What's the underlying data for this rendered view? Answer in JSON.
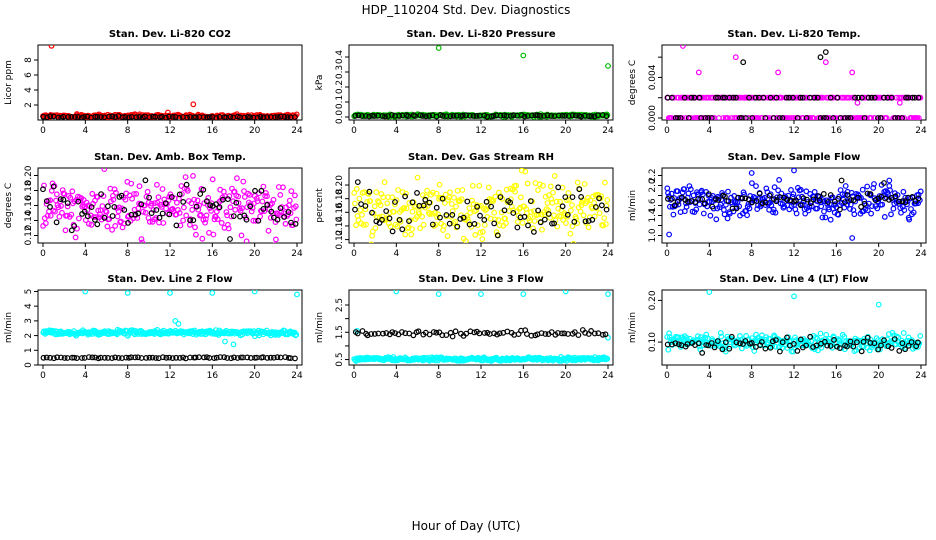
{
  "figure": {
    "title": "HDP_110204  Std. Dev. Diagnostics",
    "xlabel": "Hour of Day (UTC)"
  },
  "chart_data": [
    {
      "type": "scatter",
      "title": "Stan. Dev. Li-820 CO2",
      "ylabel": "Licor ppm",
      "xlim": [
        0,
        24
      ],
      "ylim": [
        0,
        10
      ],
      "xticks": [
        0,
        4,
        8,
        12,
        16,
        20,
        24
      ],
      "yticks": [
        2,
        4,
        6,
        8
      ],
      "ytick_labels": [
        "2",
        "4",
        "6",
        "8"
      ],
      "series": [
        {
          "name": "primary",
          "color": "#ff0000",
          "baseline": 0.5,
          "noise": 0.12,
          "outliers": [
            [
              0.8,
              9.9
            ],
            [
              11.8,
              1.0
            ],
            [
              14.2,
              2.1
            ],
            [
              3.2,
              0.8
            ],
            [
              20.5,
              0.7
            ]
          ]
        },
        {
          "name": "secondary",
          "color": "#000000",
          "baseline": 0.4,
          "noise": 0.05,
          "outliers": []
        }
      ]
    },
    {
      "type": "scatter",
      "title": "Stan. Dev. Li-820 Pressure",
      "ylabel": "kPa",
      "xlim": [
        0,
        24
      ],
      "ylim": [
        -0.02,
        0.48
      ],
      "xticks": [
        0,
        4,
        8,
        12,
        16,
        20,
        24
      ],
      "yticks": [
        0.0,
        0.1,
        0.2,
        0.3,
        0.4
      ],
      "ytick_labels": [
        "0.0",
        "0.1",
        "0.2",
        "0.3",
        "0.4"
      ],
      "series": [
        {
          "name": "primary",
          "color": "#00bb00",
          "baseline": 0.01,
          "noise": 0.004,
          "outliers": [
            [
              8,
              0.46
            ],
            [
              16,
              0.41
            ],
            [
              24,
              0.34
            ]
          ]
        },
        {
          "name": "secondary",
          "color": "#000000",
          "baseline": 0.008,
          "noise": 0.003,
          "outliers": []
        }
      ]
    },
    {
      "type": "scatter",
      "title": "Stan. Dev. Li-820 Temp.",
      "ylabel": "degrees C",
      "xlim": [
        0,
        24
      ],
      "ylim": [
        -0.0002,
        0.0072
      ],
      "xticks": [
        0,
        4,
        8,
        12,
        16,
        20,
        24
      ],
      "yticks": [
        0.0,
        0.002,
        0.004,
        0.006
      ],
      "ytick_labels": [
        "0.000",
        "",
        "0.004",
        ""
      ],
      "series": [
        {
          "name": "primary",
          "color": "#ff00ff",
          "levels": [
            0.0,
            0.002
          ],
          "outliers": [
            [
              1.5,
              0.0071
            ],
            [
              6.5,
              0.006
            ],
            [
              15,
              0.0055
            ],
            [
              17.5,
              0.0045
            ],
            [
              18,
              0.0015
            ],
            [
              22,
              0.0015
            ],
            [
              10.5,
              0.0045
            ],
            [
              3,
              0.0045
            ]
          ]
        },
        {
          "name": "secondary",
          "color": "#000000",
          "levels": [
            0.0,
            0.002
          ],
          "outliers": [
            [
              7.2,
              0.0055
            ],
            [
              14.5,
              0.006
            ],
            [
              15,
              0.0065
            ]
          ]
        }
      ]
    },
    {
      "type": "scatter",
      "title": "Stan. Dev. Amb. Box Temp.",
      "ylabel": "degrees C",
      "xlim": [
        0,
        24
      ],
      "ylim": [
        0.11,
        0.21
      ],
      "xticks": [
        0,
        4,
        8,
        12,
        16,
        20,
        24
      ],
      "yticks": [
        0.12,
        0.14,
        0.16,
        0.18,
        0.2
      ],
      "ytick_labels": [
        "0.12",
        "0.14",
        "0.16",
        "0.18",
        "0.20"
      ],
      "series": [
        {
          "name": "primary",
          "color": "#ff00ff",
          "baseline": 0.158,
          "noise": 0.018,
          "outliers": []
        },
        {
          "name": "secondary",
          "color": "#000000",
          "baseline": 0.155,
          "noise": 0.014,
          "outliers": []
        }
      ]
    },
    {
      "type": "scatter",
      "title": "Stan. Dev. Gas Stream RH",
      "ylabel": "percent",
      "xlim": [
        0,
        24
      ],
      "ylim": [
        0.115,
        0.225
      ],
      "xticks": [
        0,
        4,
        8,
        12,
        16,
        20,
        24
      ],
      "yticks": [
        0.12,
        0.14,
        0.16,
        0.18,
        0.2
      ],
      "ytick_labels": [
        "0.12",
        "0.14",
        "0.16",
        "0.18",
        "0.20"
      ],
      "series": [
        {
          "name": "primary",
          "color": "#ffff00",
          "baseline": 0.165,
          "noise": 0.02,
          "outliers": []
        },
        {
          "name": "secondary",
          "color": "#000000",
          "baseline": 0.16,
          "noise": 0.016,
          "outliers": []
        }
      ]
    },
    {
      "type": "scatter",
      "title": "Stan. Dev. Sample Flow",
      "ylabel": "ml/min",
      "xlim": [
        0,
        24
      ],
      "ylim": [
        0.85,
        2.35
      ],
      "xticks": [
        0,
        4,
        8,
        12,
        16,
        20,
        24
      ],
      "yticks": [
        1.0,
        1.2,
        1.4,
        1.6,
        1.8,
        2.0,
        2.2
      ],
      "ytick_labels": [
        "1.0",
        "",
        "1.4",
        "1.6",
        "",
        "2.0",
        "2.2"
      ],
      "series": [
        {
          "name": "primary",
          "color": "#0000ff",
          "baseline": 1.68,
          "noise": 0.16,
          "outliers": [
            [
              0.2,
              1.02
            ],
            [
              17.5,
              0.95
            ],
            [
              12,
              2.3
            ],
            [
              8,
              2.25
            ],
            [
              21,
              2.1
            ]
          ]
        },
        {
          "name": "secondary",
          "color": "#000000",
          "baseline": 1.72,
          "noise": 0.07,
          "outliers": [
            [
              16.5,
              2.1
            ],
            [
              20.5,
              2.05
            ]
          ]
        }
      ]
    },
    {
      "type": "scatter",
      "title": "Stan. Dev. Line 2 Flow",
      "ylabel": "ml/min",
      "xlim": [
        0,
        24
      ],
      "ylim": [
        0,
        5.1
      ],
      "xticks": [
        0,
        4,
        8,
        12,
        16,
        20,
        24
      ],
      "yticks": [
        0,
        1,
        2,
        3,
        4,
        5
      ],
      "ytick_labels": [
        "0",
        "1",
        "2",
        "3",
        "4",
        "5"
      ],
      "series": [
        {
          "name": "primary",
          "color": "#00ffff",
          "baseline": 2.2,
          "noise": 0.08,
          "outliers": [
            [
              4,
              5.0
            ],
            [
              8,
              4.9
            ],
            [
              12,
              4.9
            ],
            [
              16,
              4.9
            ],
            [
              20,
              5.0
            ],
            [
              24,
              4.8
            ],
            [
              12.5,
              3.0
            ],
            [
              12.8,
              2.8
            ],
            [
              17.2,
              1.6
            ],
            [
              18,
              1.4
            ]
          ]
        },
        {
          "name": "secondary",
          "color": "#000000",
          "baseline": 0.5,
          "noise": 0.02,
          "outliers": []
        }
      ]
    },
    {
      "type": "scatter",
      "title": "Stan. Dev. Line 3 Flow",
      "ylabel": "ml/min",
      "xlim": [
        0,
        24
      ],
      "ylim": [
        0.3,
        3.05
      ],
      "xticks": [
        0,
        4,
        8,
        12,
        16,
        20,
        24
      ],
      "yticks": [
        0.5,
        1.0,
        1.5,
        2.0,
        2.5
      ],
      "ytick_labels": [
        "0.5",
        "",
        "1.5",
        "",
        "2.5"
      ],
      "series": [
        {
          "name": "primary",
          "color": "#00ffff",
          "baseline": 0.52,
          "noise": 0.03,
          "outliers": [
            [
              4,
              3.0
            ],
            [
              8,
              2.9
            ],
            [
              12,
              2.9
            ],
            [
              16,
              2.9
            ],
            [
              20,
              3.0
            ],
            [
              24,
              2.9
            ],
            [
              0.3,
              1.55
            ],
            [
              24,
              1.3
            ]
          ]
        },
        {
          "name": "secondary",
          "color": "#000000",
          "baseline": 1.45,
          "noise": 0.05,
          "outliers": []
        }
      ]
    },
    {
      "type": "scatter",
      "title": "Stan. Dev. Line 4 (LT) Flow",
      "ylabel": "ml/min",
      "xlim": [
        0,
        24
      ],
      "ylim": [
        0.045,
        0.225
      ],
      "xticks": [
        0,
        4,
        8,
        12,
        16,
        20,
        24
      ],
      "yticks": [
        0.1,
        0.2
      ],
      "ytick_labels": [
        "0.10",
        "0.20"
      ],
      "series": [
        {
          "name": "primary",
          "color": "#00ffff",
          "baseline": 0.1,
          "noise": 0.01,
          "outliers": [
            [
              4,
              0.22
            ],
            [
              12,
              0.21
            ],
            [
              20,
              0.19
            ]
          ]
        },
        {
          "name": "secondary",
          "color": "#000000",
          "baseline": 0.095,
          "noise": 0.008,
          "outliers": []
        }
      ]
    }
  ]
}
